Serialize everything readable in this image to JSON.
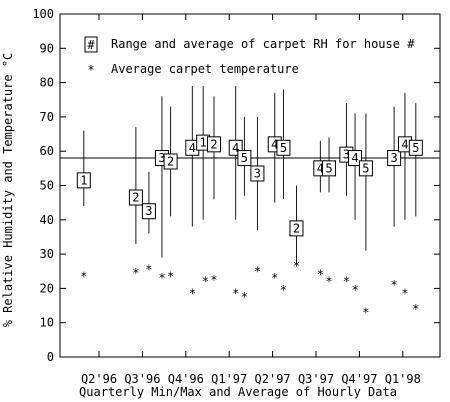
{
  "chart_data": {
    "type": "scatter",
    "ylabel": "% Relative Humidity and Temperature °C",
    "xlabel": "Quarterly Min/Max and Average of Hourly Data",
    "ylim": [
      0,
      100
    ],
    "yticks": [
      0,
      10,
      20,
      30,
      40,
      50,
      60,
      70,
      80,
      90,
      100
    ],
    "categories": [
      "Q2'96",
      "Q3'96",
      "Q4'96",
      "Q1'97",
      "Q2'97",
      "Q3'97",
      "Q4'97",
      "Q1'98"
    ],
    "reference_line_y": 58,
    "grid": false,
    "legend": {
      "placement": "top-left",
      "range_marker_symbol": "#",
      "range_label": "Range and average of carpet RH for house #",
      "temp_marker_symbol": "*",
      "temp_label": "Average carpet temperature"
    },
    "series": [
      {
        "name": "Range and average of carpet RH for house #",
        "points": [
          {
            "quarter": "Q2'96",
            "offset": -0.35,
            "house": "1",
            "min": 44,
            "max": 66,
            "avg": 51.5
          },
          {
            "quarter": "Q3'96",
            "offset": -0.15,
            "house": "2",
            "min": 33,
            "max": 67,
            "avg": 46.5
          },
          {
            "quarter": "Q3'96",
            "offset": 0.15,
            "house": "3",
            "min": 36,
            "max": 54,
            "avg": 42.5
          },
          {
            "quarter": "Q4'96",
            "offset": -0.55,
            "house": "3",
            "min": 29,
            "max": 76,
            "avg": 58
          },
          {
            "quarter": "Q4'96",
            "offset": -0.35,
            "house": "2",
            "min": 41,
            "max": 73,
            "avg": 57
          },
          {
            "quarter": "Q4'96",
            "offset": 0.15,
            "house": "4",
            "min": 38,
            "max": 79,
            "avg": 61
          },
          {
            "quarter": "Q1'97",
            "offset": -0.6,
            "house": "1",
            "min": 40,
            "max": 79,
            "avg": 62.5
          },
          {
            "quarter": "Q1'97",
            "offset": -0.35,
            "house": "2",
            "min": 46,
            "max": 76,
            "avg": 62
          },
          {
            "quarter": "Q1'97",
            "offset": 0.15,
            "house": "4",
            "min": 40,
            "max": 79,
            "avg": 61
          },
          {
            "quarter": "Q1'97",
            "offset": 0.35,
            "house": "5",
            "min": 47,
            "max": 70,
            "avg": 58
          },
          {
            "quarter": "Q2'97",
            "offset": -0.35,
            "house": "3",
            "min": 37,
            "max": 70,
            "avg": 53.5
          },
          {
            "quarter": "Q2'97",
            "offset": 0.05,
            "house": "4",
            "min": 45,
            "max": 77,
            "avg": 62
          },
          {
            "quarter": "Q2'97",
            "offset": 0.25,
            "house": "5",
            "min": 46,
            "max": 78,
            "avg": 61
          },
          {
            "quarter": "Q3'97",
            "offset": -0.45,
            "house": "2",
            "min": 27,
            "max": 50,
            "avg": 37.5
          },
          {
            "quarter": "Q3'97",
            "offset": 0.1,
            "house": "4",
            "min": 48,
            "max": 63,
            "avg": 55
          },
          {
            "quarter": "Q3'97",
            "offset": 0.3,
            "house": "5",
            "min": 48,
            "max": 64,
            "avg": 55
          },
          {
            "quarter": "Q4'97",
            "offset": -0.3,
            "house": "3",
            "min": 47,
            "max": 74,
            "avg": 59
          },
          {
            "quarter": "Q4'97",
            "offset": -0.1,
            "house": "4",
            "min": 40,
            "max": 71,
            "avg": 58
          },
          {
            "quarter": "Q4'97",
            "offset": 0.15,
            "house": "5",
            "min": 31,
            "max": 71,
            "avg": 55
          },
          {
            "quarter": "Q1'98",
            "offset": -0.2,
            "house": "3",
            "min": 38,
            "max": 73,
            "avg": 58
          },
          {
            "quarter": "Q1'98",
            "offset": 0.05,
            "house": "4",
            "min": 40,
            "max": 77,
            "avg": 62
          },
          {
            "quarter": "Q1'98",
            "offset": 0.3,
            "house": "5",
            "min": 41,
            "max": 74,
            "avg": 61
          }
        ]
      },
      {
        "name": "Average carpet temperature",
        "points": [
          {
            "quarter": "Q2'96",
            "offset": -0.35,
            "value": 23.5
          },
          {
            "quarter": "Q3'96",
            "offset": -0.15,
            "value": 24.5
          },
          {
            "quarter": "Q3'96",
            "offset": 0.15,
            "value": 25.5
          },
          {
            "quarter": "Q4'96",
            "offset": -0.55,
            "value": 23
          },
          {
            "quarter": "Q4'96",
            "offset": -0.35,
            "value": 23.5
          },
          {
            "quarter": "Q4'96",
            "offset": 0.15,
            "value": 18.5
          },
          {
            "quarter": "Q1'97",
            "offset": -0.55,
            "value": 22
          },
          {
            "quarter": "Q1'97",
            "offset": -0.35,
            "value": 22.5
          },
          {
            "quarter": "Q1'97",
            "offset": 0.15,
            "value": 18.5
          },
          {
            "quarter": "Q1'97",
            "offset": 0.35,
            "value": 17.5
          },
          {
            "quarter": "Q2'97",
            "offset": -0.35,
            "value": 25
          },
          {
            "quarter": "Q2'97",
            "offset": 0.05,
            "value": 23
          },
          {
            "quarter": "Q2'97",
            "offset": 0.25,
            "value": 19.5
          },
          {
            "quarter": "Q3'97",
            "offset": -0.45,
            "value": 26.5
          },
          {
            "quarter": "Q3'97",
            "offset": 0.1,
            "value": 24
          },
          {
            "quarter": "Q3'97",
            "offset": 0.3,
            "value": 22
          },
          {
            "quarter": "Q4'97",
            "offset": -0.3,
            "value": 22
          },
          {
            "quarter": "Q4'97",
            "offset": -0.1,
            "value": 19.5
          },
          {
            "quarter": "Q4'97",
            "offset": 0.15,
            "value": 13
          },
          {
            "quarter": "Q1'98",
            "offset": -0.2,
            "value": 21
          },
          {
            "quarter": "Q1'98",
            "offset": 0.05,
            "value": 18.5
          },
          {
            "quarter": "Q1'98",
            "offset": 0.3,
            "value": 14
          }
        ]
      }
    ]
  }
}
